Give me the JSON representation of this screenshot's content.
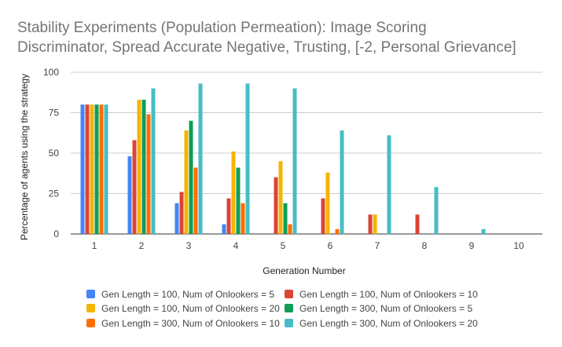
{
  "chart_data": {
    "type": "bar",
    "title_lines": [
      "Stability Experiments (Population Permeation):  Image Scoring",
      "Discriminator, Spread Accurate Negative, Trusting, [-2, Personal Grievance]"
    ],
    "xlabel": "Generation Number",
    "ylabel": "Percentage of agents using the strategy",
    "ylim": [
      0,
      100
    ],
    "yticks": [
      "0",
      "25",
      "50",
      "75",
      "100"
    ],
    "categories": [
      "1",
      "2",
      "3",
      "4",
      "5",
      "6",
      "7",
      "8",
      "9",
      "10"
    ],
    "grid": true,
    "legend_position": "bottom",
    "series": [
      {
        "name": "Gen Length = 100, Num of Onlookers = 5",
        "color": "#4285f4",
        "values": [
          80,
          48,
          19,
          6,
          0,
          0,
          0,
          0,
          0,
          0
        ]
      },
      {
        "name": "Gen Length = 100, Num of Onlookers = 10",
        "color": "#db4437",
        "values": [
          80,
          58,
          26,
          22,
          35,
          22,
          12,
          12,
          0,
          0
        ]
      },
      {
        "name": "Gen Length = 100, Num of Onlookers = 20",
        "color": "#f4b400",
        "values": [
          80,
          83,
          64,
          51,
          45,
          38,
          12,
          0,
          0,
          0
        ]
      },
      {
        "name": "Gen Length = 300, Num of Onlookers = 5",
        "color": "#0f9d58",
        "values": [
          80,
          83,
          70,
          41,
          19,
          0,
          0,
          0,
          0,
          0
        ]
      },
      {
        "name": "Gen Length = 300, Num of Onlookers = 10",
        "color": "#ff6d00",
        "values": [
          80,
          74,
          41,
          19,
          6,
          3,
          0,
          0,
          0,
          0
        ]
      },
      {
        "name": "Gen Length = 300, Num of Onlookers = 20",
        "color": "#46bdc6",
        "values": [
          80,
          90,
          93,
          93,
          90,
          64,
          61,
          29,
          3,
          0
        ]
      }
    ]
  }
}
